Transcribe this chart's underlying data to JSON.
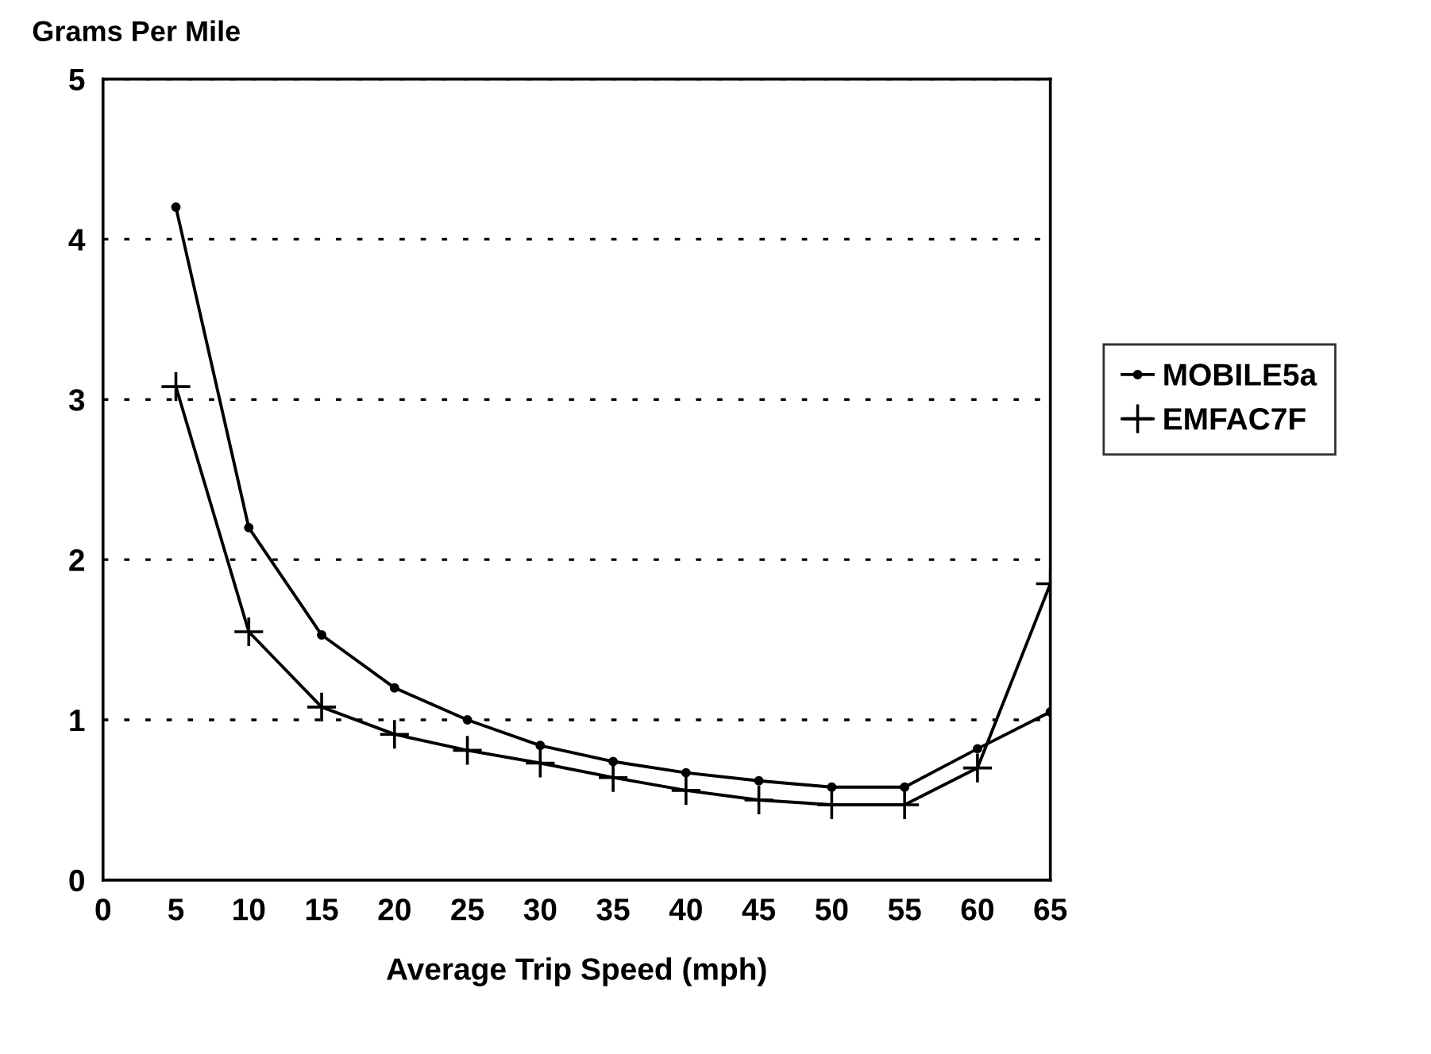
{
  "chart_data": {
    "type": "line",
    "ylabel": "Grams Per Mile",
    "xlabel": "Average Trip Speed (mph)",
    "x": [
      5,
      10,
      15,
      20,
      25,
      30,
      35,
      40,
      45,
      50,
      55,
      60,
      65
    ],
    "series": [
      {
        "name": "MOBILE5a",
        "color": "#000000",
        "marker": "circle",
        "values": [
          4.2,
          2.2,
          1.53,
          1.2,
          1.0,
          0.84,
          0.74,
          0.67,
          0.62,
          0.58,
          0.58,
          0.82,
          1.05
        ]
      },
      {
        "name": "EMFAC7F",
        "color": "#000000",
        "marker": "cross",
        "values": [
          3.08,
          1.55,
          1.08,
          0.91,
          0.81,
          0.73,
          0.64,
          0.56,
          0.5,
          0.47,
          0.47,
          0.7,
          1.85
        ]
      }
    ],
    "xlim": [
      0,
      65
    ],
    "xticks": [
      0,
      5,
      10,
      15,
      20,
      25,
      30,
      35,
      40,
      45,
      50,
      55,
      60,
      65
    ],
    "ylim": [
      0,
      5
    ],
    "yticks": [
      0,
      1,
      2,
      3,
      4,
      5
    ],
    "grid": "y",
    "legend": "right",
    "line_style": "solid"
  }
}
